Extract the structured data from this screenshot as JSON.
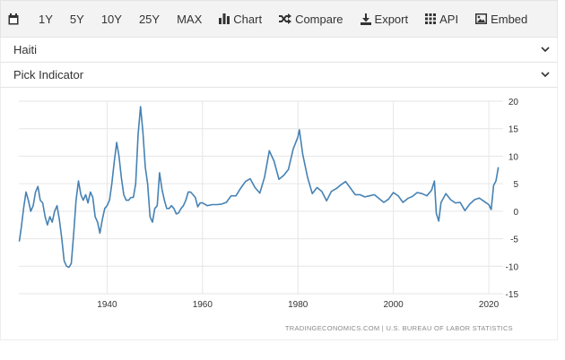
{
  "toolbar": {
    "range_buttons": [
      "1Y",
      "5Y",
      "10Y",
      "25Y",
      "MAX"
    ],
    "chart_label": "Chart",
    "compare_label": "Compare",
    "export_label": "Export",
    "api_label": "API",
    "embed_label": "Embed"
  },
  "country_select": {
    "value": "Haiti"
  },
  "indicator_select": {
    "value": "Pick Indicator"
  },
  "source": "TRADINGECONOMICS.COM  |  U.S. BUREAU OF LABOR STATISTICS",
  "colors": {
    "line": "#4682b4",
    "grid": "#e6e6e6",
    "toolbar_bg": "#f3f3f3"
  },
  "chart_data": {
    "type": "line",
    "xlim": [
      1921.5,
      2023
    ],
    "ylim": [
      -15,
      20
    ],
    "xticks": [
      1940,
      1960,
      1980,
      2000,
      2020
    ],
    "yticks": [
      20,
      15,
      10,
      5,
      0,
      -5,
      -10,
      -15
    ],
    "grid": true,
    "series": [
      {
        "points": [
          [
            1921.6,
            -5.5
          ],
          [
            1922,
            -3
          ],
          [
            1922.5,
            0.5
          ],
          [
            1923,
            3.5
          ],
          [
            1923.5,
            2
          ],
          [
            1924,
            0
          ],
          [
            1924.5,
            1
          ],
          [
            1925,
            3.5
          ],
          [
            1925.5,
            4.5
          ],
          [
            1926,
            2
          ],
          [
            1926.5,
            1.5
          ],
          [
            1927,
            -1
          ],
          [
            1927.5,
            -2.5
          ],
          [
            1928,
            -1
          ],
          [
            1928.5,
            -2
          ],
          [
            1929,
            0
          ],
          [
            1929.5,
            1
          ],
          [
            1930,
            -1.5
          ],
          [
            1930.5,
            -5
          ],
          [
            1931,
            -9
          ],
          [
            1931.5,
            -10
          ],
          [
            1932,
            -10.2
          ],
          [
            1932.5,
            -9.5
          ],
          [
            1933,
            -4
          ],
          [
            1933.5,
            2
          ],
          [
            1934,
            5.5
          ],
          [
            1934.5,
            3
          ],
          [
            1935,
            2
          ],
          [
            1935.5,
            3
          ],
          [
            1936,
            1.5
          ],
          [
            1936.5,
            3.5
          ],
          [
            1937,
            2.5
          ],
          [
            1937.5,
            -1
          ],
          [
            1938,
            -2
          ],
          [
            1938.5,
            -4
          ],
          [
            1939,
            -1.5
          ],
          [
            1939.5,
            0.5
          ],
          [
            1940,
            1
          ],
          [
            1940.5,
            2
          ],
          [
            1941,
            5
          ],
          [
            1941.5,
            9
          ],
          [
            1942,
            12.5
          ],
          [
            1942.5,
            10
          ],
          [
            1943,
            6
          ],
          [
            1943.5,
            3
          ],
          [
            1944,
            2
          ],
          [
            1944.5,
            2
          ],
          [
            1945,
            2.5
          ],
          [
            1945.5,
            2.5
          ],
          [
            1946,
            5
          ],
          [
            1946.5,
            14
          ],
          [
            1947,
            19
          ],
          [
            1947.5,
            14.5
          ],
          [
            1948,
            8
          ],
          [
            1948.5,
            5
          ],
          [
            1949,
            -1
          ],
          [
            1949.5,
            -2
          ],
          [
            1950,
            0.5
          ],
          [
            1950.5,
            1
          ],
          [
            1951,
            7
          ],
          [
            1951.5,
            4
          ],
          [
            1952,
            2
          ],
          [
            1952.5,
            0.5
          ],
          [
            1953,
            0.5
          ],
          [
            1953.5,
            1
          ],
          [
            1954,
            0.5
          ],
          [
            1954.5,
            -0.5
          ],
          [
            1955,
            -0.3
          ],
          [
            1955.5,
            0.5
          ],
          [
            1956,
            1
          ],
          [
            1956.5,
            2
          ],
          [
            1957,
            3.5
          ],
          [
            1957.5,
            3.5
          ],
          [
            1958,
            3
          ],
          [
            1958.5,
            2.5
          ],
          [
            1959,
            0.8
          ],
          [
            1959.5,
            1.5
          ],
          [
            1960,
            1.5
          ],
          [
            1961,
            1
          ],
          [
            1962,
            1.2
          ],
          [
            1963,
            1.2
          ],
          [
            1964,
            1.3
          ],
          [
            1965,
            1.6
          ],
          [
            1966,
            2.8
          ],
          [
            1967,
            2.8
          ],
          [
            1968,
            4.2
          ],
          [
            1969,
            5.4
          ],
          [
            1970,
            5.9
          ],
          [
            1971,
            4.3
          ],
          [
            1972,
            3.3
          ],
          [
            1973,
            6.2
          ],
          [
            1974,
            11
          ],
          [
            1975,
            9.1
          ],
          [
            1976,
            5.8
          ],
          [
            1977,
            6.5
          ],
          [
            1978,
            7.6
          ],
          [
            1979,
            11.3
          ],
          [
            1980,
            13.5
          ],
          [
            1980.3,
            14.8
          ],
          [
            1981,
            10.3
          ],
          [
            1982,
            6.2
          ],
          [
            1983,
            3.2
          ],
          [
            1984,
            4.3
          ],
          [
            1985,
            3.6
          ],
          [
            1986,
            1.9
          ],
          [
            1987,
            3.6
          ],
          [
            1988,
            4.1
          ],
          [
            1989,
            4.8
          ],
          [
            1990,
            5.4
          ],
          [
            1991,
            4.2
          ],
          [
            1992,
            3
          ],
          [
            1993,
            3
          ],
          [
            1994,
            2.6
          ],
          [
            1995,
            2.8
          ],
          [
            1996,
            3
          ],
          [
            1997,
            2.3
          ],
          [
            1998,
            1.6
          ],
          [
            1999,
            2.2
          ],
          [
            2000,
            3.4
          ],
          [
            2001,
            2.8
          ],
          [
            2002,
            1.6
          ],
          [
            2003,
            2.3
          ],
          [
            2004,
            2.7
          ],
          [
            2005,
            3.4
          ],
          [
            2006,
            3.2
          ],
          [
            2007,
            2.8
          ],
          [
            2008,
            3.8
          ],
          [
            2008.6,
            5.5
          ],
          [
            2009,
            -0.4
          ],
          [
            2009.5,
            -1.8
          ],
          [
            2010,
            1.6
          ],
          [
            2011,
            3.2
          ],
          [
            2012,
            2.1
          ],
          [
            2013,
            1.5
          ],
          [
            2014,
            1.6
          ],
          [
            2015,
            0.1
          ],
          [
            2016,
            1.3
          ],
          [
            2017,
            2.1
          ],
          [
            2018,
            2.4
          ],
          [
            2019,
            1.8
          ],
          [
            2020,
            1.2
          ],
          [
            2020.5,
            0.3
          ],
          [
            2021,
            4.7
          ],
          [
            2021.5,
            5.5
          ],
          [
            2022,
            8
          ]
        ]
      }
    ]
  }
}
